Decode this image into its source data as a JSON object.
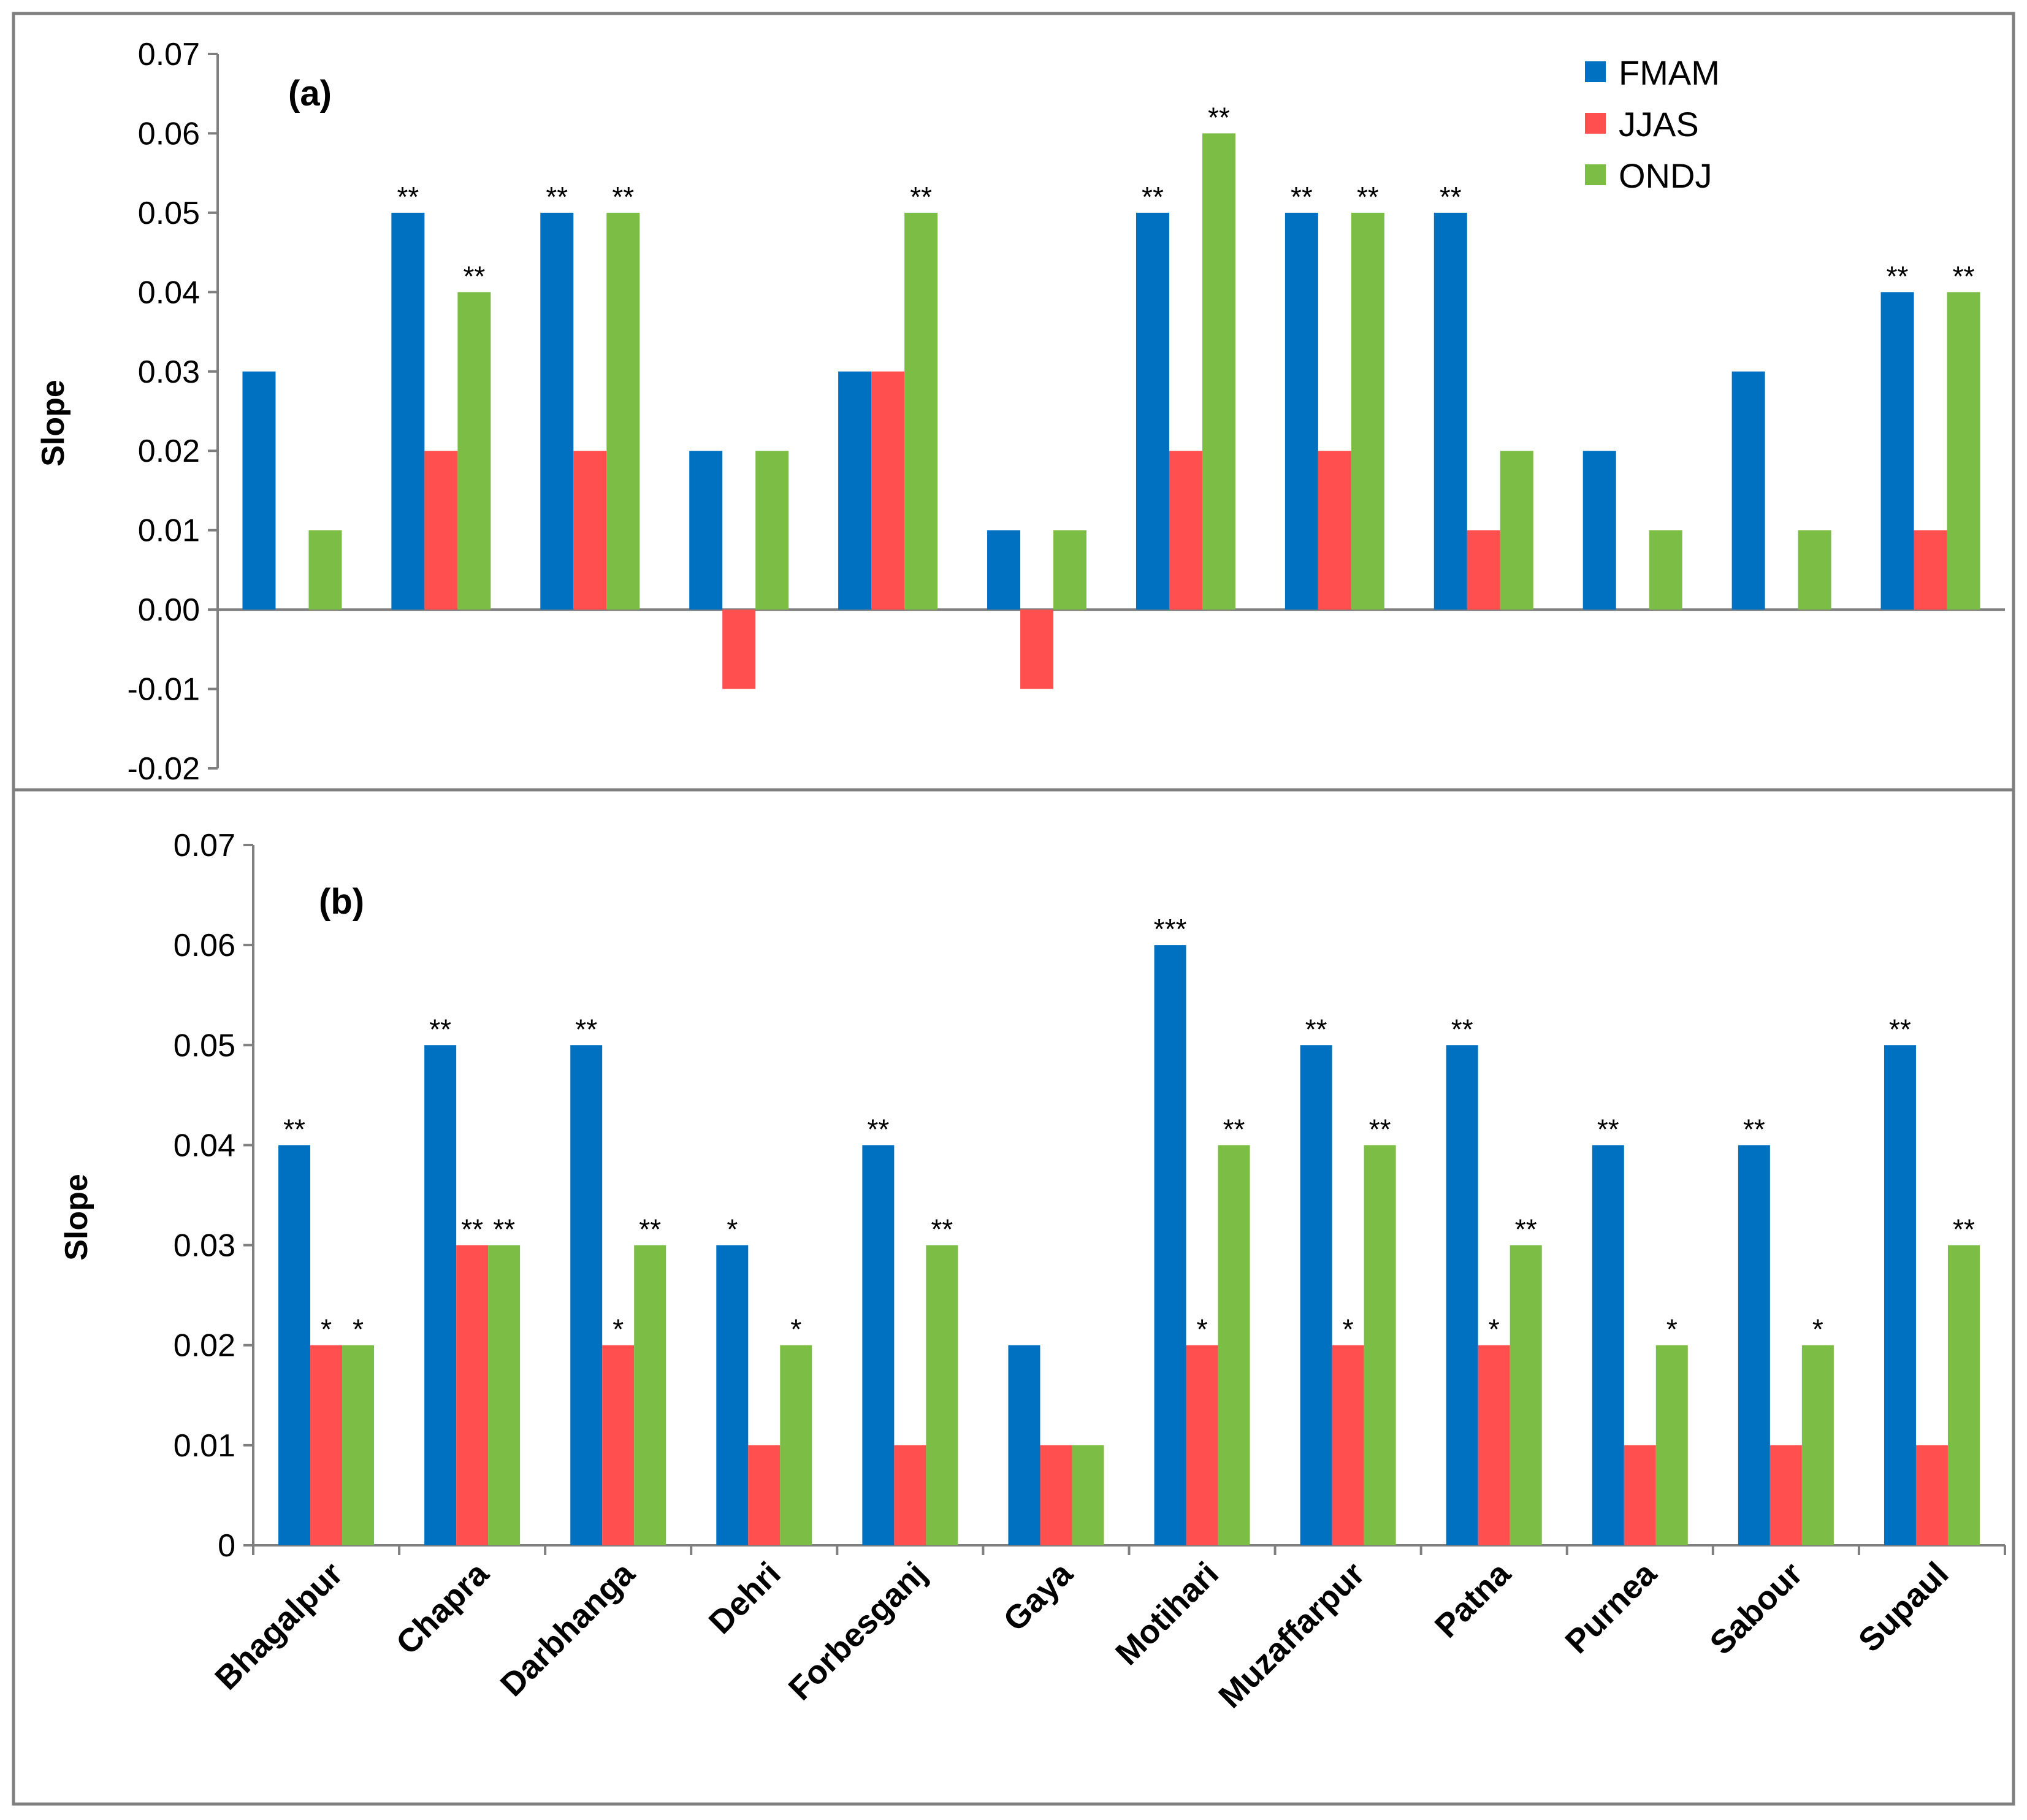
{
  "chart_data": {
    "categories": [
      "Bhagalpur",
      "Chapra",
      "Darbhanga",
      "Dehri",
      "Forbesganj",
      "Gaya",
      "Motihari",
      "Muzaffarpur",
      "Patna",
      "Purnea",
      "Sabour",
      "Supaul"
    ],
    "series_names": [
      "FMAM",
      "JJAS",
      "ONDJ"
    ],
    "colors": {
      "FMAM": "#0070c0",
      "JJAS": "#ff4f4f",
      "ONDJ": "#7cbd45"
    },
    "legend_position": "top-right",
    "panels": [
      {
        "type": "bar",
        "label": "(a)",
        "ylabel": "Slope",
        "ylim": [
          -0.02,
          0.07
        ],
        "yticks": [
          -0.02,
          -0.01,
          0.0,
          0.01,
          0.02,
          0.03,
          0.04,
          0.05,
          0.06,
          0.07
        ],
        "ytick_labels": [
          "-0.02",
          "-0.01",
          "0.00",
          "0.01",
          "0.02",
          "0.03",
          "0.04",
          "0.05",
          "0.06",
          "0.07"
        ],
        "show_category_labels": false,
        "series": [
          {
            "name": "FMAM",
            "values": [
              0.03,
              0.05,
              0.05,
              0.02,
              0.03,
              0.01,
              0.05,
              0.05,
              0.05,
              0.02,
              0.03,
              0.04
            ],
            "significance": [
              "",
              "**",
              "**",
              "",
              "",
              "",
              "**",
              "**",
              "**",
              "",
              "",
              "**"
            ]
          },
          {
            "name": "JJAS",
            "values": [
              0.0,
              0.02,
              0.02,
              -0.01,
              0.03,
              -0.01,
              0.02,
              0.02,
              0.01,
              0.0,
              0.0,
              0.01
            ],
            "significance": [
              "",
              "",
              "",
              "",
              "",
              "",
              "",
              "",
              "",
              "",
              "",
              ""
            ]
          },
          {
            "name": "ONDJ",
            "values": [
              0.01,
              0.04,
              0.05,
              0.02,
              0.05,
              0.01,
              0.06,
              0.05,
              0.02,
              0.01,
              0.01,
              0.04
            ],
            "significance": [
              "",
              "**",
              "**",
              "",
              "**",
              "",
              "**",
              "**",
              "",
              "",
              "",
              "**"
            ]
          }
        ]
      },
      {
        "type": "bar",
        "label": "(b)",
        "ylabel": "Slope",
        "ylim": [
          0,
          0.07
        ],
        "yticks": [
          0,
          0.01,
          0.02,
          0.03,
          0.04,
          0.05,
          0.06,
          0.07
        ],
        "ytick_labels": [
          "0",
          "0.01",
          "0.02",
          "0.03",
          "0.04",
          "0.05",
          "0.06",
          "0.07"
        ],
        "show_category_labels": true,
        "series": [
          {
            "name": "FMAM",
            "values": [
              0.04,
              0.05,
              0.05,
              0.03,
              0.04,
              0.02,
              0.06,
              0.05,
              0.05,
              0.04,
              0.04,
              0.05
            ],
            "significance": [
              "**",
              "**",
              "**",
              "*",
              "**",
              "",
              "***",
              "**",
              "**",
              "**",
              "**",
              "**"
            ]
          },
          {
            "name": "JJAS",
            "values": [
              0.02,
              0.03,
              0.02,
              0.01,
              0.01,
              0.01,
              0.02,
              0.02,
              0.02,
              0.01,
              0.01,
              0.01
            ],
            "significance": [
              "*",
              "**",
              "*",
              "",
              "",
              "",
              "*",
              "*",
              "*",
              "",
              "",
              ""
            ]
          },
          {
            "name": "ONDJ",
            "values": [
              0.02,
              0.03,
              0.03,
              0.02,
              0.03,
              0.01,
              0.04,
              0.04,
              0.03,
              0.02,
              0.02,
              0.03
            ],
            "significance": [
              "*",
              "**",
              "**",
              "*",
              "**",
              "",
              "**",
              "**",
              "**",
              "*",
              "*",
              "**"
            ]
          }
        ]
      }
    ]
  }
}
